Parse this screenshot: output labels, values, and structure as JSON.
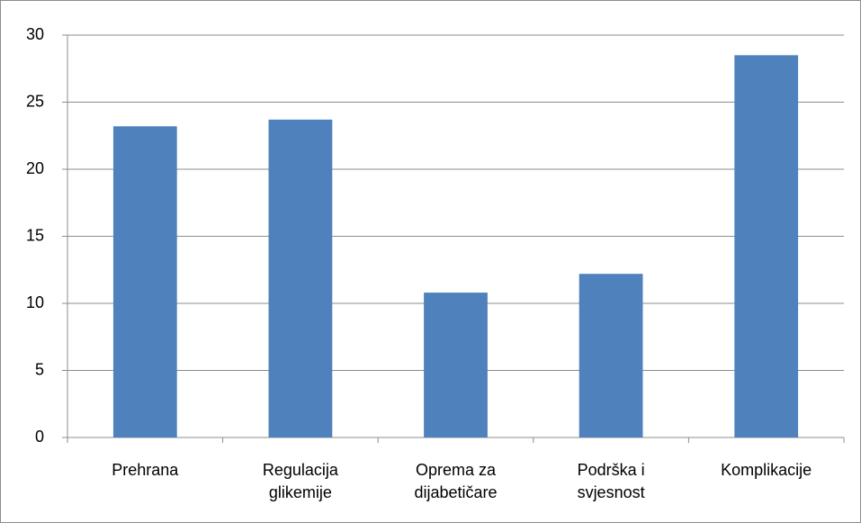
{
  "chart_data": {
    "type": "bar",
    "categories": [
      "Prehrana",
      "Regulacija glikemije",
      "Oprema za dijabetičare",
      "Podrška i svjesnost",
      "Komplikacije"
    ],
    "values": [
      23.2,
      23.7,
      10.8,
      12.2,
      28.5
    ],
    "color": "#4f81bd",
    "ylim": [
      0,
      30
    ],
    "yticks": [
      0,
      5,
      10,
      15,
      20,
      25,
      30
    ],
    "grid": true
  }
}
